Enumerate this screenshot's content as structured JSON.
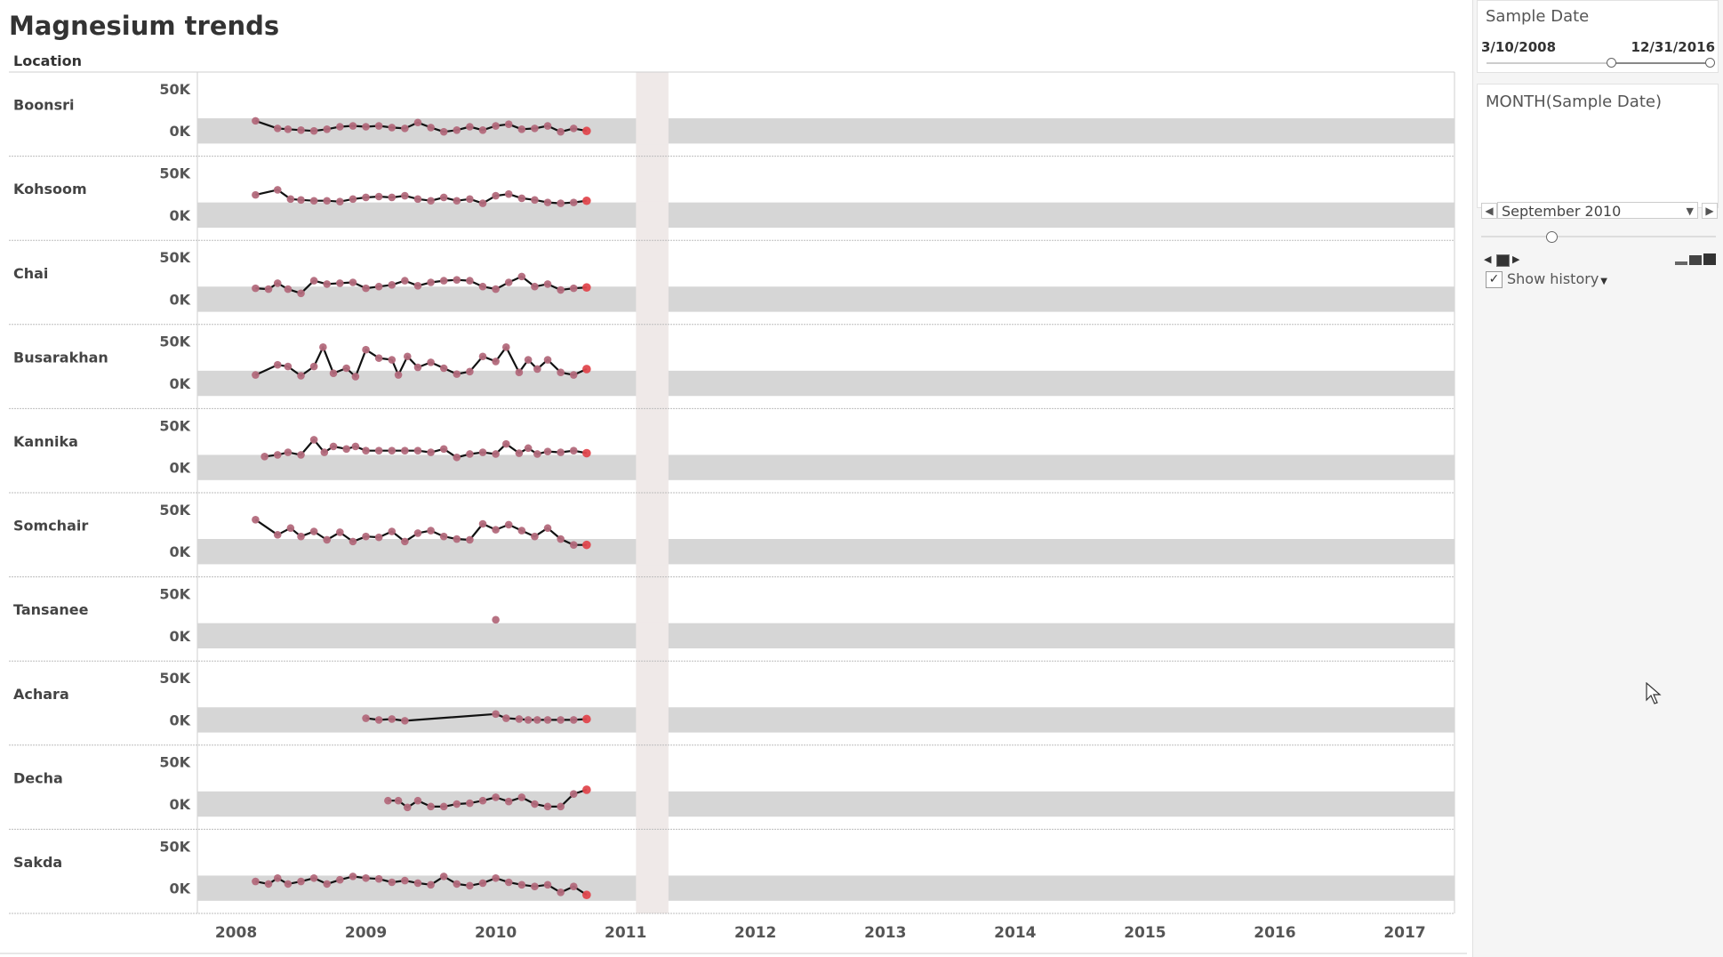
{
  "title": "Magnesium trends",
  "chart_data": {
    "type": "line",
    "row_header": "Location",
    "x_ticks": [
      "2008",
      "2009",
      "2010",
      "2011",
      "2012",
      "2013",
      "2014",
      "2015",
      "2016",
      "2017"
    ],
    "y_ticks": [
      "50K",
      "0K"
    ],
    "ylim": [
      -30000,
      70000
    ],
    "xlim": [
      2007.7,
      2017.4
    ],
    "reference_band": [
      -15000,
      15000
    ],
    "highlight_year_band": [
      2011.08,
      2011.33
    ],
    "colors": {
      "line": "#111111",
      "marker": "#b36a7c",
      "latest_marker": "#e0484e",
      "band": "#d6d6d6",
      "highlight": "#efe9e8"
    },
    "locations": [
      {
        "name": "Boonsri",
        "x": [
          2008.15,
          2008.32,
          2008.4,
          2008.5,
          2008.6,
          2008.7,
          2008.8,
          2008.9,
          2009.0,
          2009.1,
          2009.2,
          2009.3,
          2009.4,
          2009.5,
          2009.6,
          2009.7,
          2009.8,
          2009.9,
          2010.0,
          2010.1,
          2010.2,
          2010.3,
          2010.4,
          2010.5,
          2010.6,
          2010.7
        ],
        "y": [
          12000,
          3000,
          2000,
          1000,
          0,
          2000,
          5000,
          6000,
          5000,
          6000,
          4000,
          3000,
          10000,
          4000,
          -1000,
          1000,
          5000,
          1000,
          6000,
          8000,
          2000,
          3000,
          6000,
          -1000,
          3000,
          0
        ]
      },
      {
        "name": "Kohsoom",
        "x": [
          2008.15,
          2008.32,
          2008.42,
          2008.5,
          2008.6,
          2008.7,
          2008.8,
          2008.9,
          2009.0,
          2009.1,
          2009.2,
          2009.3,
          2009.4,
          2009.5,
          2009.6,
          2009.7,
          2009.8,
          2009.9,
          2010.0,
          2010.1,
          2010.2,
          2010.3,
          2010.4,
          2010.5,
          2010.6,
          2010.7
        ],
        "y": [
          24000,
          30000,
          19000,
          18000,
          17000,
          17000,
          16000,
          19000,
          21000,
          22000,
          21000,
          23000,
          19000,
          17000,
          21000,
          17000,
          19000,
          14000,
          23000,
          25000,
          20000,
          18000,
          15000,
          14000,
          15000,
          17000
        ]
      },
      {
        "name": "Chai",
        "x": [
          2008.15,
          2008.25,
          2008.32,
          2008.4,
          2008.5,
          2008.6,
          2008.7,
          2008.8,
          2008.9,
          2009.0,
          2009.1,
          2009.2,
          2009.3,
          2009.4,
          2009.5,
          2009.6,
          2009.7,
          2009.8,
          2009.9,
          2010.0,
          2010.1,
          2010.2,
          2010.3,
          2010.4,
          2010.5,
          2010.6,
          2010.7
        ],
        "y": [
          13000,
          12000,
          19000,
          12000,
          7000,
          22000,
          18000,
          19000,
          20000,
          13000,
          15000,
          17000,
          22000,
          16000,
          20000,
          22000,
          23000,
          22000,
          15000,
          12000,
          20000,
          27000,
          15000,
          18000,
          11000,
          13000,
          14000
        ]
      },
      {
        "name": "Busarakhan",
        "x": [
          2008.15,
          2008.32,
          2008.4,
          2008.5,
          2008.6,
          2008.67,
          2008.75,
          2008.85,
          2008.92,
          2009.0,
          2009.1,
          2009.2,
          2009.25,
          2009.32,
          2009.4,
          2009.5,
          2009.6,
          2009.7,
          2009.8,
          2009.9,
          2010.0,
          2010.08,
          2010.18,
          2010.25,
          2010.32,
          2010.4,
          2010.5,
          2010.6,
          2010.7
        ],
        "y": [
          10000,
          22000,
          20000,
          9000,
          20000,
          43000,
          12000,
          18000,
          8000,
          40000,
          30000,
          28000,
          10000,
          32000,
          19000,
          25000,
          18000,
          11000,
          14000,
          32000,
          26000,
          43000,
          13000,
          28000,
          17000,
          28000,
          13000,
          10000,
          17000
        ]
      },
      {
        "name": "Kannika",
        "x": [
          2008.22,
          2008.32,
          2008.4,
          2008.5,
          2008.6,
          2008.68,
          2008.75,
          2008.85,
          2008.92,
          2009.0,
          2009.1,
          2009.2,
          2009.3,
          2009.4,
          2009.5,
          2009.6,
          2009.7,
          2009.8,
          2009.9,
          2010.0,
          2010.08,
          2010.18,
          2010.25,
          2010.32,
          2010.4,
          2010.5,
          2010.6,
          2010.7
        ],
        "y": [
          13000,
          15000,
          18000,
          15000,
          33000,
          18000,
          25000,
          22000,
          25000,
          20000,
          20000,
          20000,
          20000,
          20000,
          18000,
          22000,
          12000,
          16000,
          18000,
          16000,
          28000,
          17000,
          23000,
          16000,
          19000,
          18000,
          20000,
          17000
        ]
      },
      {
        "name": "Somchair",
        "x": [
          2008.15,
          2008.32,
          2008.42,
          2008.5,
          2008.6,
          2008.7,
          2008.8,
          2008.9,
          2009.0,
          2009.1,
          2009.2,
          2009.3,
          2009.4,
          2009.5,
          2009.6,
          2009.7,
          2009.8,
          2009.9,
          2010.0,
          2010.1,
          2010.2,
          2010.3,
          2010.4,
          2010.5,
          2010.6,
          2010.7
        ],
        "y": [
          38000,
          20000,
          28000,
          18000,
          24000,
          14000,
          23000,
          12000,
          18000,
          17000,
          24000,
          12000,
          22000,
          25000,
          18000,
          15000,
          14000,
          33000,
          26000,
          32000,
          25000,
          18000,
          28000,
          15000,
          8000,
          8000
        ]
      },
      {
        "name": "Tansanee",
        "x": [
          2010.0
        ],
        "y": [
          19000
        ]
      },
      {
        "name": "Achara",
        "x": [
          2009.0,
          2009.1,
          2009.2,
          2009.3,
          2010.0,
          2010.08,
          2010.18,
          2010.25,
          2010.32,
          2010.4,
          2010.5,
          2010.6,
          2010.7
        ],
        "y": [
          2000,
          0,
          1000,
          -1000,
          7000,
          2000,
          1000,
          0,
          0,
          0,
          0,
          0,
          1000
        ]
      },
      {
        "name": "Decha",
        "x": [
          2009.17,
          2009.25,
          2009.32,
          2009.4,
          2009.5,
          2009.6,
          2009.7,
          2009.8,
          2009.9,
          2010.0,
          2010.1,
          2010.2,
          2010.3,
          2010.4,
          2010.5,
          2010.6,
          2010.7
        ],
        "y": [
          4000,
          4000,
          -4000,
          4000,
          -3000,
          -3000,
          0,
          1000,
          4000,
          8000,
          3000,
          8000,
          0,
          -3000,
          -3000,
          12000,
          17000
        ]
      },
      {
        "name": "Sakda",
        "x": [
          2008.15,
          2008.25,
          2008.32,
          2008.4,
          2008.5,
          2008.6,
          2008.7,
          2008.8,
          2008.9,
          2009.0,
          2009.1,
          2009.2,
          2009.3,
          2009.4,
          2009.5,
          2009.6,
          2009.7,
          2009.8,
          2009.9,
          2010.0,
          2010.1,
          2010.2,
          2010.3,
          2010.4,
          2010.5,
          2010.6,
          2010.7
        ],
        "y": [
          8000,
          5000,
          12000,
          5000,
          8000,
          12000,
          5000,
          10000,
          14000,
          12000,
          11000,
          7000,
          9000,
          6000,
          4000,
          14000,
          5000,
          3000,
          6000,
          12000,
          7000,
          4000,
          2000,
          4000,
          -5000,
          2000,
          -8000
        ]
      }
    ]
  },
  "filters": {
    "sample_date": {
      "title": "Sample Date",
      "start": "3/10/2008",
      "end": "12/31/2016",
      "start_fraction": 0.55,
      "end_fraction": 1.0
    },
    "month": {
      "title": "MONTH(Sample Date)",
      "selected": "September 2010",
      "position_fraction": 0.3,
      "show_history_label": "Show history",
      "show_history_checked": true
    }
  },
  "icons": {
    "prev": "chevron-left-icon",
    "next": "chevron-right-icon",
    "dropdown": "chevron-down-icon",
    "checkbox": "check-icon",
    "playback": "playback-controls-icon",
    "speed": "speed-bars-icon",
    "cursor": "mouse-pointer-icon"
  }
}
